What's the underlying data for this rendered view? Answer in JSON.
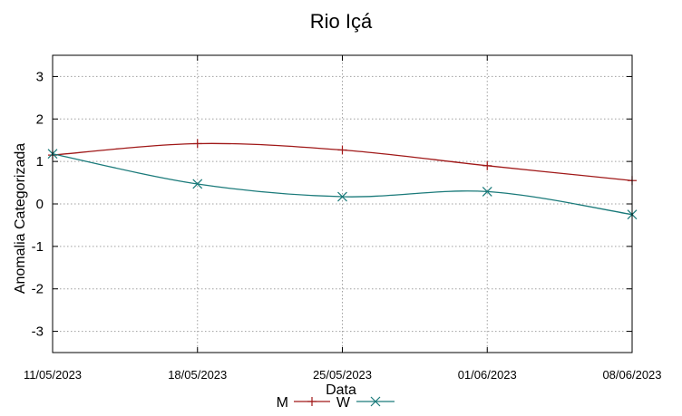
{
  "chart_data": {
    "type": "line",
    "title": "Rio Içá",
    "xlabel": "Data",
    "ylabel": "Anomalia Categorizada",
    "categories": [
      "11/05/2023",
      "18/05/2023",
      "25/05/2023",
      "01/06/2023",
      "08/06/2023"
    ],
    "ylim": [
      -3.5,
      3.5
    ],
    "yticks": [
      3,
      2,
      1,
      0,
      -1,
      -2,
      -3
    ],
    "grid": true,
    "legend_position": "bottom-center",
    "series": [
      {
        "name": "M",
        "marker": "+",
        "color": "#a01818",
        "values": [
          1.15,
          1.42,
          1.27,
          0.9,
          0.55
        ]
      },
      {
        "name": "W",
        "marker": "x",
        "color": "#1a7a7a",
        "values": [
          1.18,
          0.47,
          0.17,
          0.29,
          -0.25
        ]
      }
    ]
  }
}
